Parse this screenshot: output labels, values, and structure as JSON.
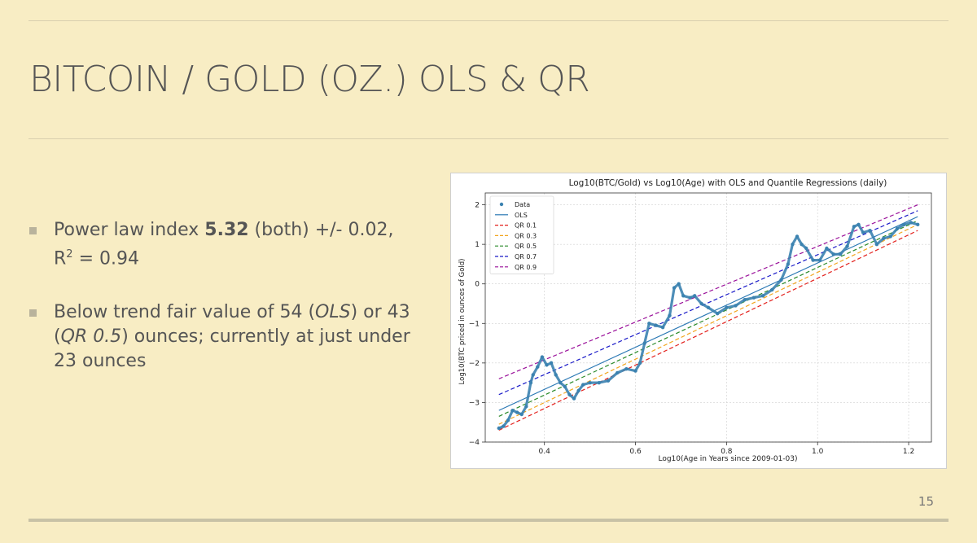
{
  "slide": {
    "title": "BITCOIN / GOLD (OZ.) OLS & QR",
    "page_number": "15",
    "bullets": [
      {
        "t1": "Power law index ",
        "bold": "5.32",
        "t2": " (both) +/- 0.02,",
        "r": "R",
        "sup": "2",
        "t3": " = 0.94"
      },
      {
        "t1": "Below trend fair value of 54 (",
        "i1": "OLS",
        "t2": ") or 43 (",
        "i2": "QR 0.5",
        "t3": ") ounces; currently at just under 23 ounces"
      }
    ]
  },
  "colors": {
    "background": "#f8edc4",
    "text": "#555555",
    "data": "#3b82b0",
    "ols": "#2a78b4",
    "qr_0_1": "#e3201c",
    "qr_0_3": "#f2a51e",
    "qr_0_5": "#2a8a2a",
    "qr_0_7": "#1a1ac8",
    "qr_0_9": "#9a109a"
  },
  "chart_data": {
    "type": "scatter",
    "title": "Log10(BTC/Gold) vs Log10(Age) with OLS and Quantile Regressions (daily)",
    "xlabel": "Log10(Age in Years since 2009-01-03)",
    "ylabel": "Log10(BTC priced in ounces of Gold)",
    "xlim": [
      0.27,
      1.25
    ],
    "ylim": [
      -4.0,
      2.3
    ],
    "xticks": [
      "0.4",
      "0.6",
      "0.8",
      "1.0",
      "1.2"
    ],
    "yticks": [
      "−4",
      "−3",
      "−2",
      "−1",
      "0",
      "1",
      "2"
    ],
    "grid": true,
    "legend_position": "top-left",
    "legend": [
      "Data",
      "OLS",
      "QR 0.1",
      "QR 0.3",
      "QR 0.5",
      "QR 0.7",
      "QR 0.9"
    ],
    "data_points": [
      [
        0.3,
        -3.65
      ],
      [
        0.31,
        -3.6
      ],
      [
        0.32,
        -3.45
      ],
      [
        0.33,
        -3.2
      ],
      [
        0.34,
        -3.25
      ],
      [
        0.35,
        -3.3
      ],
      [
        0.36,
        -3.1
      ],
      [
        0.37,
        -2.5
      ],
      [
        0.375,
        -2.3
      ],
      [
        0.385,
        -2.1
      ],
      [
        0.395,
        -1.85
      ],
      [
        0.405,
        -2.05
      ],
      [
        0.415,
        -2.0
      ],
      [
        0.425,
        -2.3
      ],
      [
        0.435,
        -2.5
      ],
      [
        0.445,
        -2.6
      ],
      [
        0.455,
        -2.8
      ],
      [
        0.465,
        -2.9
      ],
      [
        0.475,
        -2.7
      ],
      [
        0.485,
        -2.55
      ],
      [
        0.5,
        -2.5
      ],
      [
        0.52,
        -2.5
      ],
      [
        0.54,
        -2.45
      ],
      [
        0.56,
        -2.25
      ],
      [
        0.58,
        -2.15
      ],
      [
        0.6,
        -2.2
      ],
      [
        0.61,
        -2.0
      ],
      [
        0.62,
        -1.5
      ],
      [
        0.63,
        -1.0
      ],
      [
        0.645,
        -1.05
      ],
      [
        0.66,
        -1.1
      ],
      [
        0.675,
        -0.8
      ],
      [
        0.685,
        -0.1
      ],
      [
        0.695,
        0.0
      ],
      [
        0.705,
        -0.3
      ],
      [
        0.72,
        -0.35
      ],
      [
        0.73,
        -0.3
      ],
      [
        0.745,
        -0.5
      ],
      [
        0.76,
        -0.6
      ],
      [
        0.78,
        -0.75
      ],
      [
        0.8,
        -0.6
      ],
      [
        0.82,
        -0.55
      ],
      [
        0.84,
        -0.4
      ],
      [
        0.86,
        -0.35
      ],
      [
        0.88,
        -0.3
      ],
      [
        0.9,
        -0.15
      ],
      [
        0.92,
        0.1
      ],
      [
        0.935,
        0.5
      ],
      [
        0.945,
        1.0
      ],
      [
        0.955,
        1.2
      ],
      [
        0.965,
        1.0
      ],
      [
        0.975,
        0.9
      ],
      [
        0.99,
        0.6
      ],
      [
        1.005,
        0.6
      ],
      [
        1.02,
        0.9
      ],
      [
        1.035,
        0.75
      ],
      [
        1.05,
        0.75
      ],
      [
        1.065,
        0.95
      ],
      [
        1.08,
        1.45
      ],
      [
        1.09,
        1.5
      ],
      [
        1.1,
        1.3
      ],
      [
        1.115,
        1.35
      ],
      [
        1.13,
        1.0
      ],
      [
        1.145,
        1.15
      ],
      [
        1.16,
        1.2
      ],
      [
        1.175,
        1.4
      ],
      [
        1.19,
        1.5
      ],
      [
        1.205,
        1.55
      ],
      [
        1.22,
        1.5
      ]
    ],
    "lines": [
      {
        "name": "OLS",
        "style": "solid",
        "x": [
          0.3,
          1.22
        ],
        "y": [
          -3.2,
          1.7
        ]
      },
      {
        "name": "QR 0.1",
        "style": "dashed",
        "x": [
          0.3,
          1.22
        ],
        "y": [
          -3.7,
          1.35
        ]
      },
      {
        "name": "QR 0.3",
        "style": "dashed",
        "x": [
          0.3,
          1.22
        ],
        "y": [
          -3.55,
          1.5
        ]
      },
      {
        "name": "QR 0.5",
        "style": "dashed",
        "x": [
          0.3,
          1.22
        ],
        "y": [
          -3.35,
          1.6
        ]
      },
      {
        "name": "QR 0.7",
        "style": "dashed",
        "x": [
          0.3,
          1.22
        ],
        "y": [
          -2.8,
          1.85
        ]
      },
      {
        "name": "QR 0.9",
        "style": "dashed",
        "x": [
          0.3,
          1.22
        ],
        "y": [
          -2.4,
          2.0
        ]
      }
    ]
  }
}
